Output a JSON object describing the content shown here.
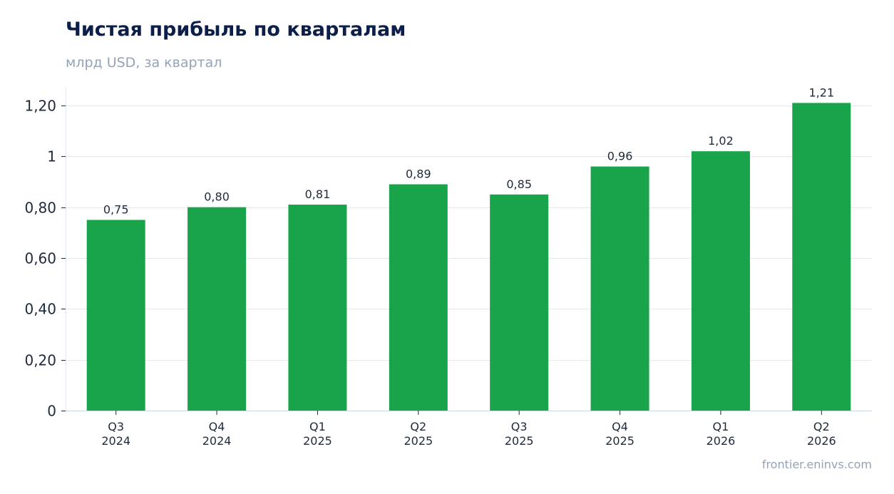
{
  "header": {
    "title": "Чистая прибыль по кварталам",
    "subtitle": "млрд USD, за квартал"
  },
  "footer": {
    "source": "frontier.eninvs.com"
  },
  "colors": {
    "bar": "#19a34a",
    "title": "#0b1f4a",
    "muted": "#94a3b8",
    "grid": "#e2e8f0",
    "axis": "#cbd5e1",
    "text": "#1e293b"
  },
  "chart_data": {
    "type": "bar",
    "title": "Чистая прибыль по кварталам",
    "subtitle": "млрд USD, за квартал",
    "categories": [
      "Q3\n2024",
      "Q4\n2024",
      "Q1\n2025",
      "Q2\n2025",
      "Q3\n2025",
      "Q4\n2025",
      "Q1\n2026",
      "Q2\n2026"
    ],
    "values": [
      0.75,
      0.8,
      0.81,
      0.89,
      0.85,
      0.96,
      1.02,
      1.21
    ],
    "data_labels": [
      "0,75",
      "0,80",
      "0,81",
      "0,89",
      "0,85",
      "0,96",
      "1,02",
      "1,21"
    ],
    "yticks": [
      0,
      0.2,
      0.4,
      0.6,
      0.8,
      1,
      1.2
    ],
    "ytick_labels": [
      "0",
      "0,20",
      "0,40",
      "0,60",
      "0,80",
      "1",
      "1,20"
    ],
    "ylim": [
      0,
      1.27
    ],
    "xlabel": "",
    "ylabel": "",
    "grid": true
  }
}
